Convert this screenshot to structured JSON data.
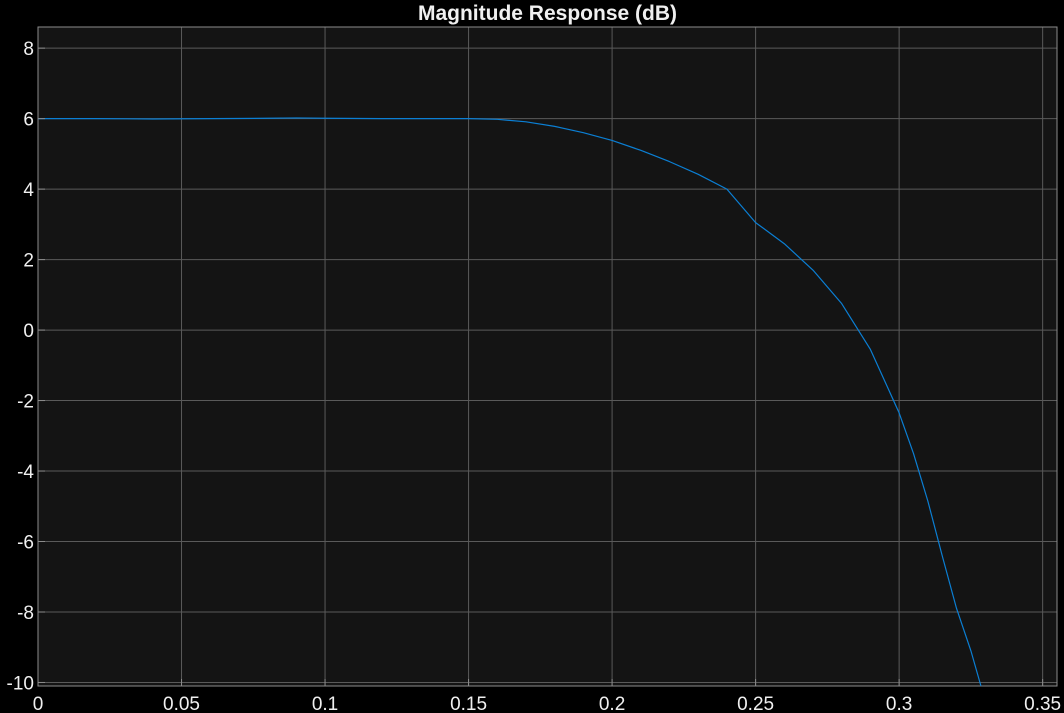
{
  "chart_data": {
    "type": "line",
    "title": "Magnitude Response (dB)",
    "xlabel": "",
    "ylabel": "",
    "xlim": [
      0,
      0.355
    ],
    "ylim": [
      -10.1,
      8.6
    ],
    "x_ticks": [
      0,
      0.05,
      0.1,
      0.15,
      0.2,
      0.25,
      0.3,
      0.35
    ],
    "x_tick_labels": [
      "0",
      "0.05",
      "0.1",
      "0.15",
      "0.2",
      "0.25",
      "0.3",
      "0.35"
    ],
    "y_ticks": [
      8,
      6,
      4,
      2,
      0,
      -2,
      -4,
      -6,
      -8,
      -10
    ],
    "y_tick_labels": [
      "8",
      "6",
      "4",
      "2",
      "0",
      "-2",
      "-4",
      "-6",
      "-8",
      "-10"
    ],
    "grid": true,
    "legend": "none",
    "colors": {
      "background": "#000000",
      "axes_background": "#141414",
      "grid": "#5a5a5a",
      "axes_box": "#8c8c8c",
      "text": "#f0f0f0",
      "line": "#0b7fd4"
    },
    "series": [
      {
        "x": [
          0,
          0.02,
          0.04,
          0.06,
          0.08,
          0.09,
          0.1,
          0.12,
          0.14,
          0.15,
          0.16,
          0.17,
          0.18,
          0.19,
          0.2,
          0.21,
          0.22,
          0.23,
          0.24,
          0.25,
          0.26,
          0.27,
          0.28,
          0.29,
          0.3,
          0.305,
          0.31,
          0.315,
          0.32,
          0.325,
          0.3285
        ],
        "values": [
          6.0,
          6.0,
          5.99,
          6.0,
          6.01,
          6.02,
          6.01,
          6.0,
          6.0,
          6.0,
          5.98,
          5.91,
          5.78,
          5.6,
          5.38,
          5.1,
          4.78,
          4.42,
          4.0,
          3.05,
          2.45,
          1.7,
          0.75,
          -0.55,
          -2.35,
          -3.5,
          -4.85,
          -6.4,
          -7.9,
          -9.1,
          -10.1
        ]
      }
    ]
  }
}
